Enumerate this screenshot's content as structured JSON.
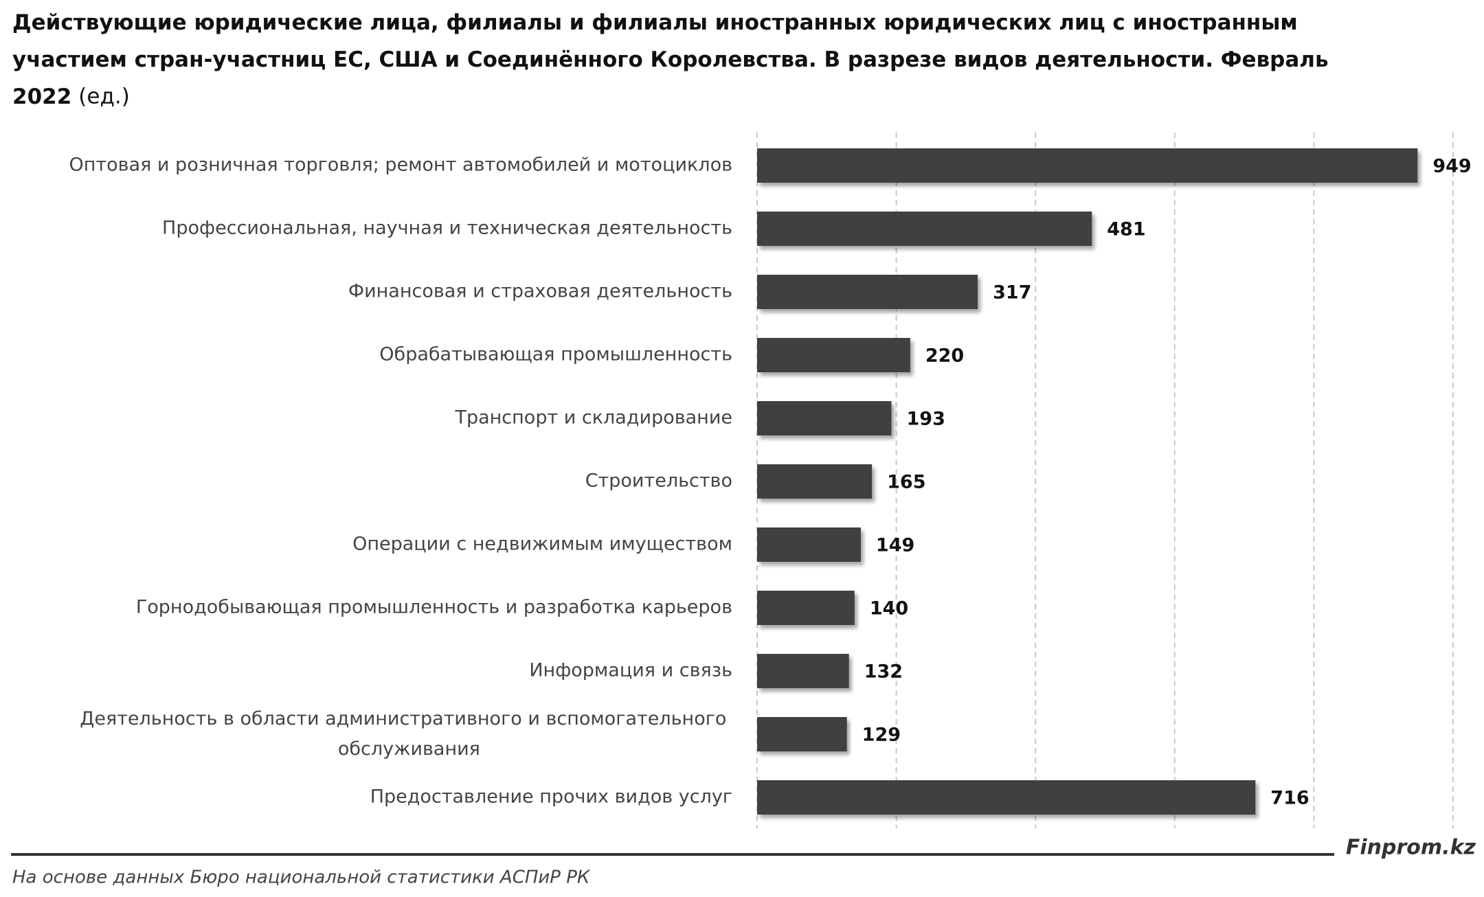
{
  "chart_data": {
    "type": "barh",
    "title": "Действующие юридические лица, филиалы и филиалы иностранных юридических лиц с иностранным участием стран-участниц ЕС, США и Соединённого Королевства. В разрезе видов деятельности. Февраль 2022",
    "unit": "(ед.)",
    "categories": [
      "Оптовая и розничная торговля; ремонт автомобилей и мотоциклов",
      "Профессиональная, научная и техническая деятельность",
      "Финансовая и страховая деятельность",
      "Обрабатывающая промышленность",
      "Транспорт и складирование",
      "Строительство",
      "Операции с недвижимым имуществом",
      "Горнодобывающая промышленность и разработка карьеров",
      "Информация и связь",
      "Деятельность в области административного и вспомогательного обслуживания",
      "Предоставление прочих видов услуг"
    ],
    "values": [
      949,
      481,
      317,
      220,
      193,
      165,
      149,
      140,
      132,
      129,
      716
    ],
    "color": "#404040",
    "xlim": [
      0,
      1000
    ],
    "xticks": [
      0,
      200,
      400,
      600,
      800,
      1000
    ],
    "grid": true,
    "source": "На основе данных Бюро национальной статистики АСПиР РК",
    "brand": "Finprom.kz"
  }
}
